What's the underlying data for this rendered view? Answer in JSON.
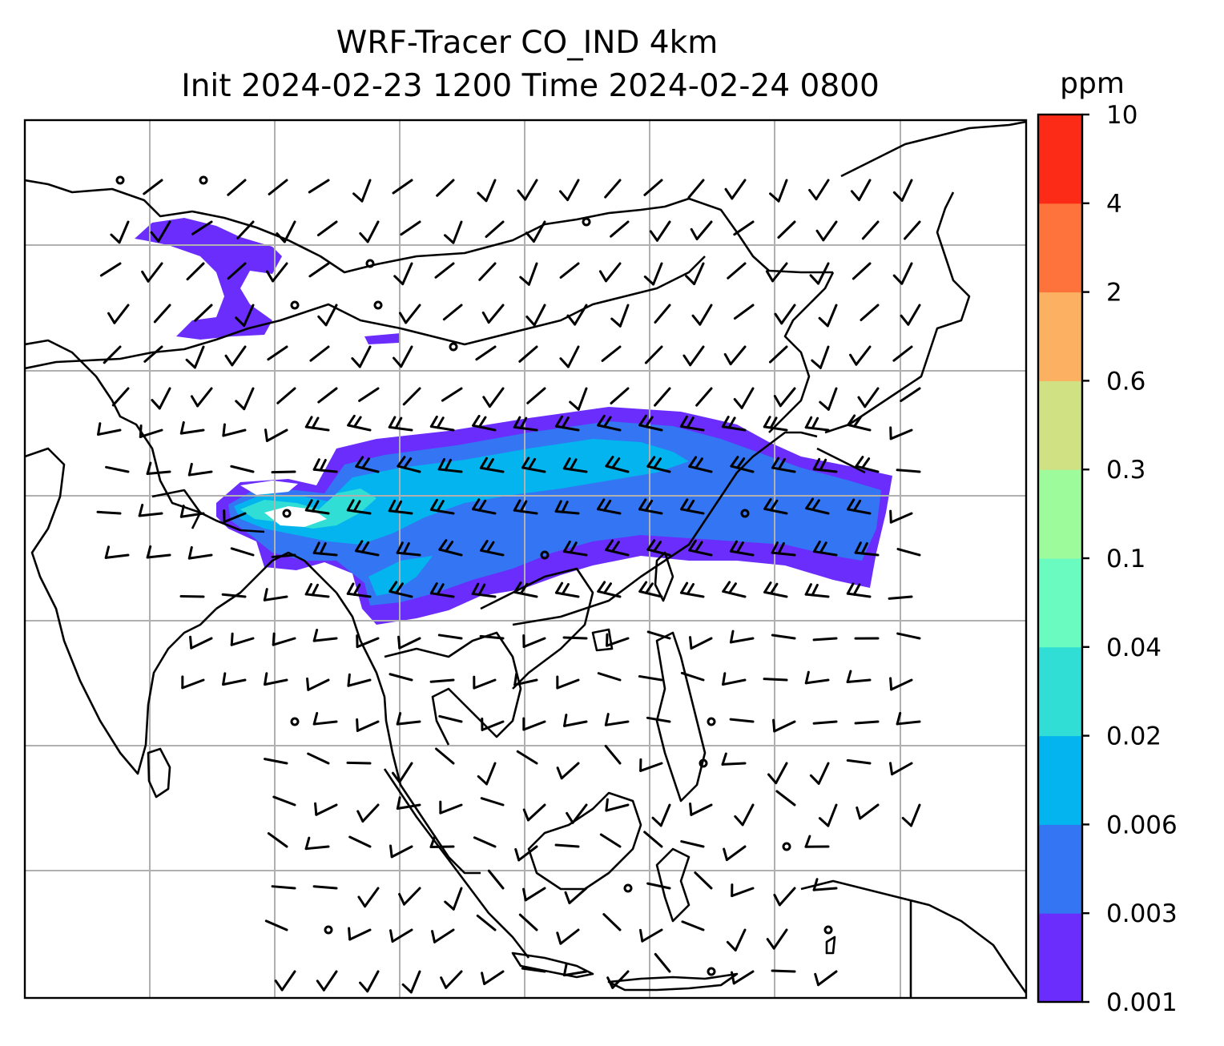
{
  "title": {
    "line1": "WRF-Tracer CO_IND 4km",
    "line2": "Init 2024-02-23 1200 Time 2024-02-24 0800"
  },
  "colorbar": {
    "unit": "ppm",
    "levels": [
      "0.001",
      "0.003",
      "0.006",
      "0.02",
      "0.04",
      "0.1",
      "0.3",
      "0.6",
      "2",
      "4",
      "10"
    ],
    "colors": [
      "#6a2dfb",
      "#3375f3",
      "#04b4ee",
      "#30ded6",
      "#6afbc1",
      "#9dfb9b",
      "#d0e184",
      "#fcb062",
      "#fe733b",
      "#fc2b17"
    ]
  },
  "map": {
    "background": "#ffffff",
    "gridline_color": "#b0b0b0",
    "coastline_color": "#000000",
    "features": [
      "coastlines",
      "country-borders",
      "lat-lon-gridlines",
      "wind-barbs",
      "tracer-plume"
    ]
  }
}
